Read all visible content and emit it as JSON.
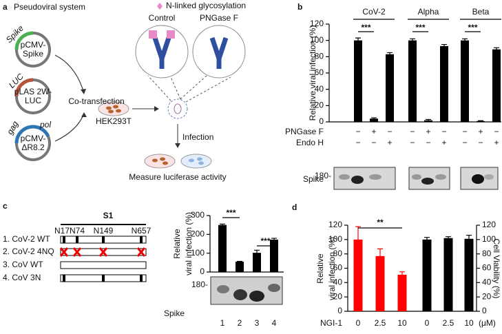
{
  "panel_a": {
    "label": "a",
    "title": "Pseudoviral system",
    "legend": "N-linked glycosylation",
    "plasmids": [
      {
        "genes": [
          "Spike"
        ],
        "name": [
          "pCMV-",
          "Spike"
        ]
      },
      {
        "genes": [
          "LUC"
        ],
        "name": [
          "pLAS 2W-",
          "LUC"
        ]
      },
      {
        "genes": [
          "gag",
          "pol"
        ],
        "name": [
          "pCMV-",
          "ΔR8.2"
        ]
      }
    ],
    "step1": "Co-transfection",
    "cell": "HEK293T",
    "conditions": [
      "Control",
      "PNGase F"
    ],
    "step2": "Infection",
    "readout": "Measure luciferase activity"
  },
  "chart_data": [
    {
      "panel": "b",
      "type": "bar",
      "ylabel": "Relative viral infection (%)",
      "ylim": [
        0,
        120
      ],
      "yticks": [
        0,
        20,
        40,
        60,
        80,
        100,
        120
      ],
      "groups": [
        {
          "name": "CoV-2",
          "values": [
            100,
            4,
            83
          ],
          "errors": [
            3,
            1,
            2
          ]
        },
        {
          "name": "Alpha",
          "values": [
            100,
            2,
            93
          ],
          "errors": [
            2,
            1,
            2
          ]
        },
        {
          "name": "Beta",
          "values": [
            100,
            1,
            89
          ],
          "errors": [
            2,
            0.5,
            2
          ]
        }
      ],
      "significance": [
        "***",
        "***",
        "***"
      ],
      "color": "#000000",
      "treatments": [
        {
          "name": "PNGase F",
          "signs": [
            "−",
            "+",
            "−"
          ]
        },
        {
          "name": "Endo H",
          "signs": [
            "−",
            "−",
            "+"
          ]
        }
      ],
      "blot": {
        "label": "Spike",
        "marker": "180-"
      }
    },
    {
      "panel": "c",
      "type": "bar",
      "schematic": {
        "title": "S1",
        "sites": [
          "N17N74",
          "N149",
          "N657"
        ],
        "constructs": [
          "1. CoV-2 WT",
          "2. CoV-2 4NQ",
          "3. CoV WT",
          "4. CoV 3N"
        ]
      },
      "ylabel": [
        "Relative",
        "viral infection (%)"
      ],
      "categories": [
        "1",
        "2",
        "3",
        "4"
      ],
      "values": [
        250,
        55,
        102,
        172
      ],
      "errors": [
        5,
        2,
        14,
        7
      ],
      "color": "#000000",
      "ylim": [
        0,
        300
      ],
      "yticks": [
        0,
        100,
        200,
        300
      ],
      "significance": [
        "***",
        "***"
      ],
      "blot": {
        "label": "Spike",
        "marker": "180-"
      }
    },
    {
      "panel": "d",
      "type": "bar",
      "ylabel": [
        "Relative",
        "viral infection (%)"
      ],
      "y2label": "Cell Viability (%)",
      "xlabel": "NGI-1",
      "xunit": "(μM)",
      "categories": [
        "0",
        "2.5",
        "10",
        "0",
        "2.5",
        "10"
      ],
      "series": [
        {
          "color": "#ff0000",
          "values": [
            100,
            77,
            51,
            null,
            null,
            null
          ],
          "errors": [
            18,
            10,
            4,
            null,
            null,
            null
          ]
        },
        {
          "color": "#000000",
          "axis": "y2",
          "values": [
            null,
            null,
            null,
            100,
            102,
            101
          ],
          "errors": [
            null,
            null,
            null,
            3,
            2,
            5
          ]
        }
      ],
      "ylim": [
        0,
        120
      ],
      "yticks": [
        0,
        20,
        40,
        60,
        80,
        100,
        120
      ],
      "y2lim": [
        0,
        120
      ],
      "y2ticks": [
        0,
        20,
        40,
        60,
        80,
        100,
        120
      ],
      "significance": [
        "**"
      ]
    }
  ]
}
